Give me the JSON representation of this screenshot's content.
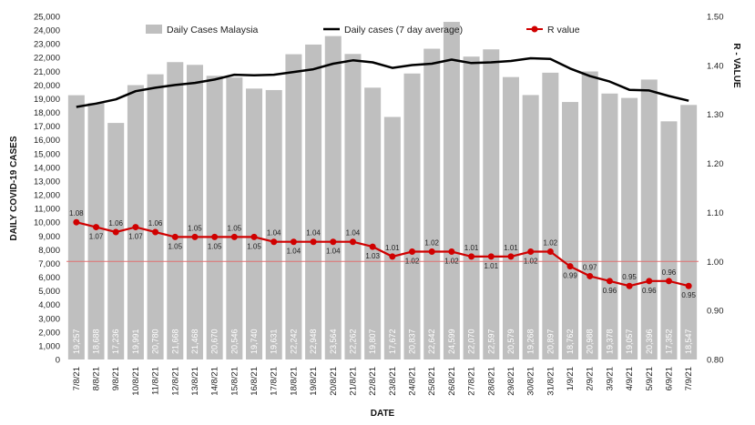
{
  "chart_data": {
    "type": "bar",
    "xlabel": "DATE",
    "ylabel": "DAILY COVID-19 CASES",
    "y2label": "R - VALUE",
    "ylim": [
      0,
      25000
    ],
    "y_ticks": [
      "0",
      "1,000",
      "2,000",
      "3,000",
      "4,000",
      "5,000",
      "6,000",
      "7,000",
      "8,000",
      "9,000",
      "10,000",
      "11,000",
      "12,000",
      "13,000",
      "14,000",
      "15,000",
      "16,000",
      "17,000",
      "18,000",
      "19,000",
      "20,000",
      "21,000",
      "22,000",
      "23,000",
      "24,000",
      "25,000"
    ],
    "y2lim": [
      0.8,
      1.5
    ],
    "y2_ticks": [
      "0.80",
      "0.90",
      "1.00",
      "1.10",
      "1.20",
      "1.30",
      "1.40",
      "1.50"
    ],
    "categories": [
      "7/8/21",
      "8/8/21",
      "9/8/21",
      "10/8/21",
      "11/8/21",
      "12/8/21",
      "13/8/21",
      "14/8/21",
      "15/8/21",
      "16/8/21",
      "17/8/21",
      "18/8/21",
      "19/8/21",
      "20/8/21",
      "21/8/21",
      "22/8/21",
      "23/8/21",
      "24/8/21",
      "25/8/21",
      "26/8/21",
      "27/8/21",
      "28/8/21",
      "29/8/21",
      "30/8/21",
      "31/8/21",
      "1/9/21",
      "2/9/21",
      "3/9/21",
      "4/9/21",
      "5/9/21",
      "6/9/21",
      "7/9/21"
    ],
    "series": [
      {
        "name": "Daily Cases Malaysia",
        "type": "bar",
        "axis": "left",
        "color": "#bfbfbf",
        "values": [
          19257,
          18688,
          17236,
          19991,
          20780,
          21668,
          21468,
          20670,
          20546,
          19740,
          19631,
          22242,
          22948,
          23564,
          22262,
          19807,
          17672,
          20837,
          22642,
          24599,
          22070,
          22597,
          20579,
          19268,
          20897,
          18762,
          20988,
          19378,
          19057,
          20396,
          17352,
          18547
        ],
        "labels": [
          "19,257",
          "18,688",
          "17,236",
          "19,991",
          "20,780",
          "21,668",
          "21,468",
          "20,670",
          "20,546",
          "19,740",
          "19,631",
          "22,242",
          "22,948",
          "23,564",
          "22,262",
          "19,807",
          "17,672",
          "20,837",
          "22,642",
          "24,599",
          "22,070",
          "22,597",
          "20,579",
          "19,268",
          "20,897",
          "18,762",
          "20,988",
          "19,378",
          "19,057",
          "20,396",
          "17,352",
          "18,547"
        ]
      },
      {
        "name": "Daily cases (7 day average)",
        "type": "line",
        "axis": "left",
        "color": "#000000",
        "values": [
          18400,
          18650,
          18950,
          19550,
          19800,
          20000,
          20150,
          20400,
          20750,
          20700,
          20750,
          20950,
          21150,
          21550,
          21800,
          21650,
          21250,
          21450,
          21550,
          21850,
          21600,
          21650,
          21750,
          21950,
          21900,
          21200,
          20650,
          20250,
          19650,
          19600,
          19200,
          18850
        ]
      },
      {
        "name": "R value",
        "type": "line",
        "axis": "right",
        "color": "#d00000",
        "values": [
          1.08,
          1.07,
          1.06,
          1.07,
          1.06,
          1.05,
          1.05,
          1.05,
          1.05,
          1.05,
          1.04,
          1.04,
          1.04,
          1.04,
          1.04,
          1.03,
          1.01,
          1.02,
          1.02,
          1.02,
          1.01,
          1.01,
          1.01,
          1.02,
          1.02,
          0.99,
          0.97,
          0.96,
          0.95,
          0.96,
          0.96,
          0.95
        ],
        "labels": [
          "1.08",
          "1.07",
          "1.06",
          "1.07",
          "1.06",
          "1.05",
          "1.05",
          "1.05",
          "1.05",
          "1.05",
          "1.04",
          "1.04",
          "1.04",
          "1.04",
          "1.04",
          "1.03",
          "1.01",
          "1.02",
          "1.02",
          "1.02",
          "1.01",
          "1.01",
          "1.01",
          "1.02",
          "1.02",
          "0.99",
          "0.97",
          "0.96",
          "0.95",
          "0.96",
          "0.96",
          "0.95"
        ]
      }
    ],
    "reference_line": {
      "axis": "right",
      "value": 1.0,
      "color": "#e07070"
    },
    "grid": false,
    "legend_position": "top"
  }
}
